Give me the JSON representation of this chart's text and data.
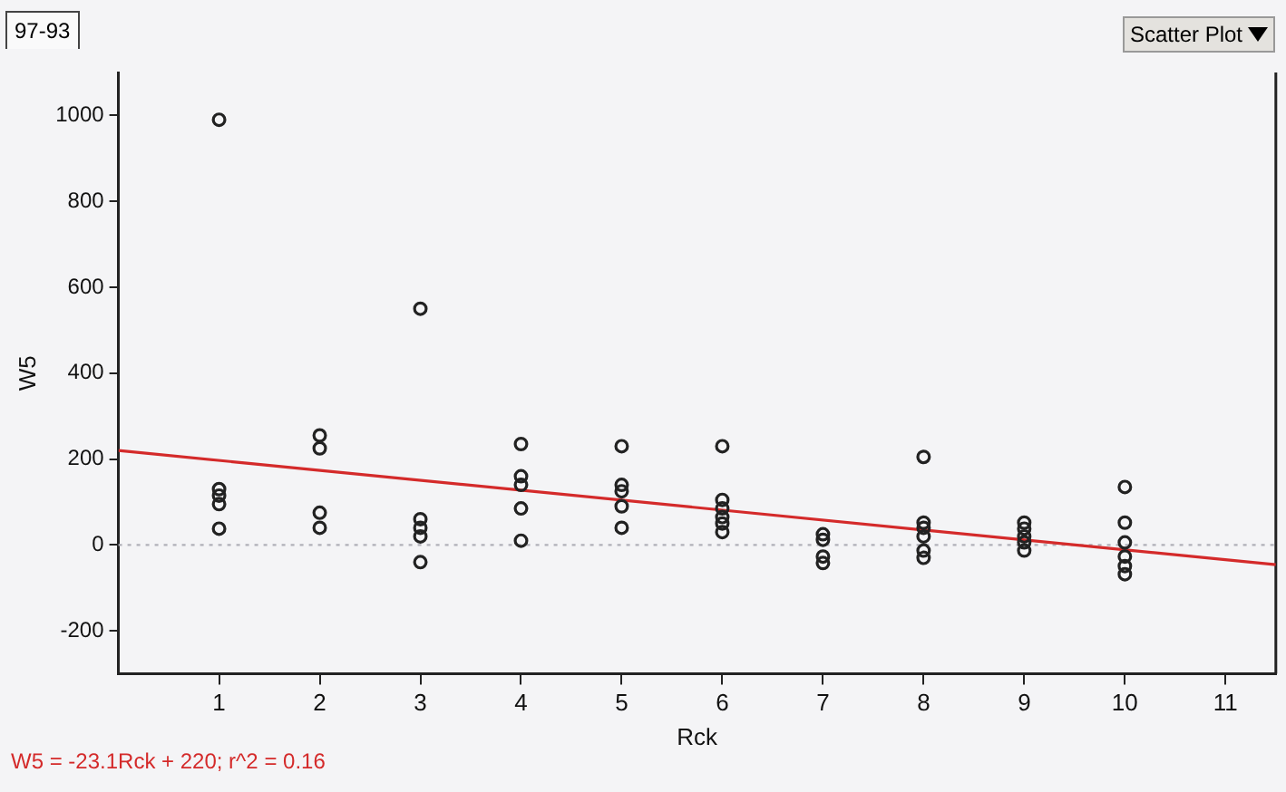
{
  "chart_data": {
    "type": "scatter",
    "title": "97-93",
    "xlabel": "Rck",
    "ylabel": "W5",
    "xlim": [
      0,
      11.5
    ],
    "xticks": [
      1,
      2,
      3,
      4,
      5,
      6,
      7,
      8,
      9,
      10,
      11
    ],
    "ylim": [
      -300,
      1100
    ],
    "yticks": [
      -200,
      0,
      200,
      400,
      600,
      800,
      1000
    ],
    "grid": false,
    "legend": false,
    "series": [
      {
        "marker": "circle",
        "color": "#222222",
        "x": [
          1,
          1,
          1,
          1,
          1,
          2,
          2,
          2,
          2,
          3,
          3,
          3,
          3,
          3,
          4,
          4,
          4,
          4,
          4,
          5,
          5,
          5,
          5,
          5,
          6,
          6,
          6,
          6,
          6,
          6,
          7,
          7,
          7,
          7,
          8,
          8,
          8,
          8,
          8,
          8,
          9,
          9,
          9,
          9,
          9,
          10,
          10,
          10,
          10,
          10,
          10
        ],
        "values": [
          990,
          130,
          115,
          95,
          38,
          255,
          225,
          75,
          40,
          550,
          60,
          40,
          20,
          -40,
          235,
          160,
          140,
          85,
          10,
          230,
          140,
          125,
          90,
          40,
          230,
          105,
          85,
          65,
          50,
          30,
          25,
          12,
          -27,
          -42,
          205,
          52,
          40,
          20,
          -13,
          -30,
          52,
          38,
          20,
          6,
          -13,
          135,
          52,
          6,
          -27,
          -49,
          -68
        ]
      },
      {
        "type": "line",
        "marker": "none",
        "color": "#d42a2a",
        "line_style": "solid",
        "x": [
          0,
          11.5
        ],
        "values": [
          220,
          -46
        ]
      }
    ],
    "ref_lines": [
      {
        "axis": "y",
        "value": 0,
        "color": "#b0b0b8",
        "line_style": "dotted"
      }
    ],
    "annotations": [
      "W5 = -23.1Rck + 220; r^2 = 0.16",
      "Scatter Plot"
    ]
  }
}
